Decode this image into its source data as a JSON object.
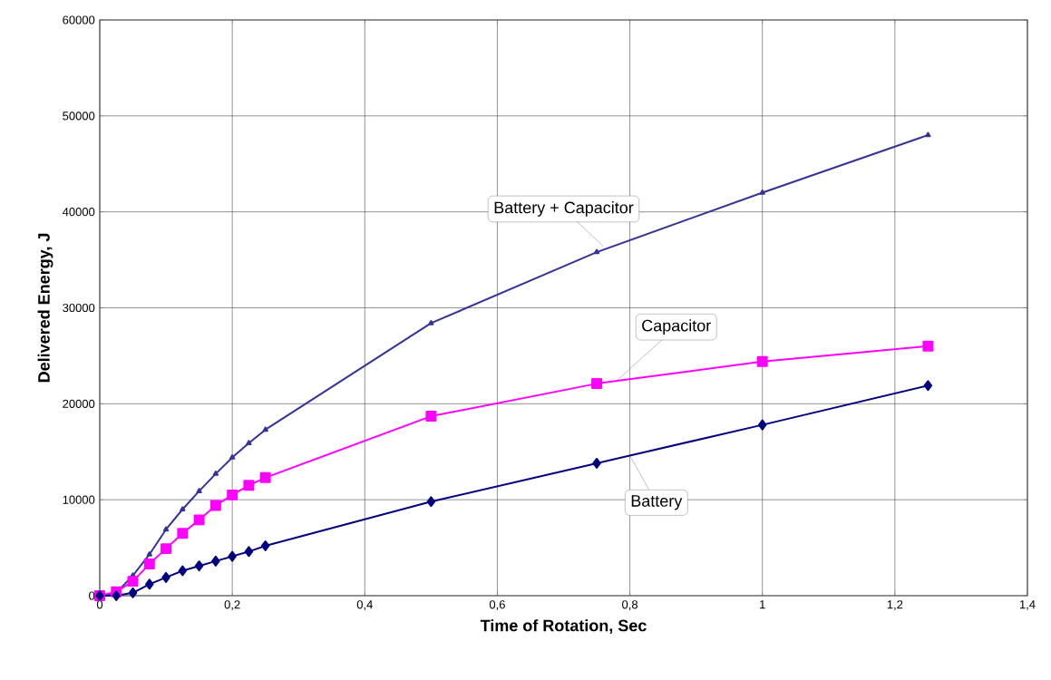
{
  "chart_data": {
    "type": "line",
    "xlabel": "Time of Rotation, Sec",
    "ylabel": "Delivered Energy, J",
    "x": [
      0,
      0.025,
      0.05,
      0.075,
      0.1,
      0.125,
      0.15,
      0.175,
      0.2,
      0.225,
      0.25,
      0.5,
      0.75,
      1,
      1.25
    ],
    "series": [
      {
        "name": "Battery + Capacitor",
        "color": "#333399",
        "marker": "triangle",
        "values": [
          0,
          300,
          2100,
          4300,
          6900,
          9000,
          10900,
          12700,
          14400,
          15900,
          17300,
          28400,
          35800,
          42000,
          48000
        ]
      },
      {
        "name": "Capacitor",
        "color": "#ff00ff",
        "marker": "square",
        "values": [
          0,
          400,
          1500,
          3300,
          4900,
          6500,
          7900,
          9400,
          10500,
          11500,
          12300,
          18700,
          22100,
          24400,
          26000
        ]
      },
      {
        "name": "Battery",
        "color": "#000080",
        "marker": "diamond",
        "values": [
          0,
          0,
          300,
          1200,
          1900,
          2600,
          3100,
          3600,
          4100,
          4600,
          5200,
          9800,
          13800,
          17800,
          21900
        ]
      }
    ],
    "xlim": [
      0,
      1.4
    ],
    "ylim": [
      0,
      60000
    ],
    "xticks": [
      0,
      {
        "value": 0.2,
        "label": "0,2"
      },
      {
        "value": 0.4,
        "label": "0,4"
      },
      {
        "value": 0.6,
        "label": "0,6"
      },
      {
        "value": 0.8,
        "label": "0,8"
      },
      1,
      {
        "value": 1.2,
        "label": "1,2"
      },
      {
        "value": 1.4,
        "label": "1,4"
      }
    ],
    "yticks": [
      0,
      10000,
      20000,
      30000,
      40000,
      50000,
      60000
    ],
    "grid": true,
    "legend": false,
    "line_style": "solid"
  }
}
